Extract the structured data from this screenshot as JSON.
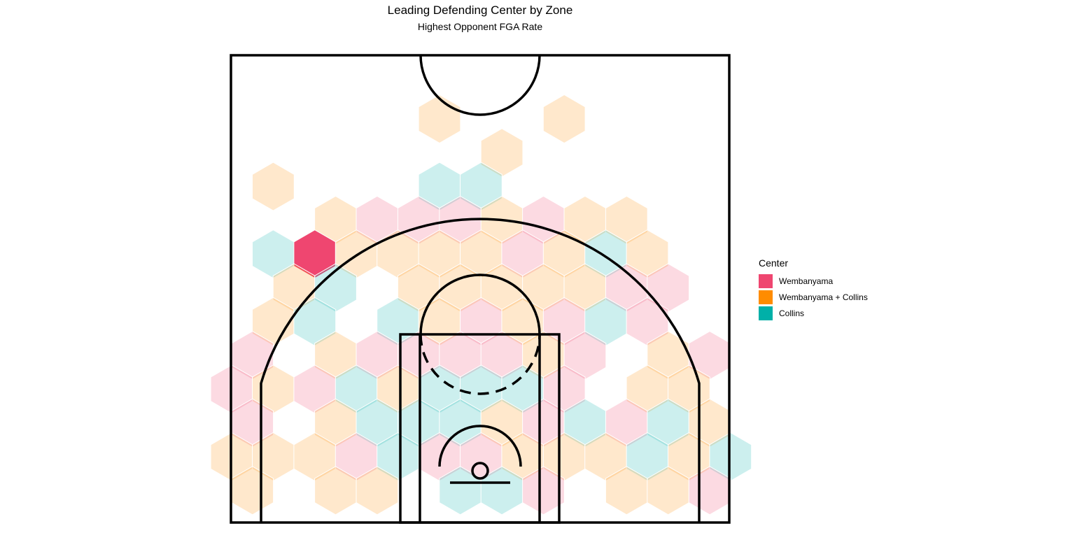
{
  "chart_data": {
    "type": "heatmap",
    "title": "Leading Defending Center by Zone",
    "subtitle": "Highest Opponent FGA Rate",
    "legend": {
      "title": "Center",
      "placement": "right",
      "entries": [
        {
          "name": "Wembanyama",
          "color": "#ef4670"
        },
        {
          "name": "Wembanyama + Collins",
          "color": "#ff8c00"
        },
        {
          "name": "Collins",
          "color": "#00b0a8"
        }
      ]
    },
    "grid": false,
    "hexbins": [
      {
        "col": 5,
        "row": 0,
        "center": "Wembanyama + Collins",
        "alpha": 0.2
      },
      {
        "col": 8,
        "row": 0,
        "center": "Wembanyama + Collins",
        "alpha": 0.2
      },
      {
        "col": 6,
        "row": 1,
        "center": "Wembanyama + Collins",
        "alpha": 0.2
      },
      {
        "col": 1,
        "row": 2,
        "center": "Wembanyama + Collins",
        "alpha": 0.2
      },
      {
        "col": 5,
        "row": 2,
        "center": "Collins",
        "alpha": 0.2
      },
      {
        "col": 6,
        "row": 2,
        "center": "Collins",
        "alpha": 0.2
      },
      {
        "col": 2,
        "row": 3,
        "center": "Wembanyama + Collins",
        "alpha": 0.2
      },
      {
        "col": 3,
        "row": 3,
        "center": "Wembanyama",
        "alpha": 0.2
      },
      {
        "col": 4,
        "row": 3,
        "center": "Wembanyama",
        "alpha": 0.2
      },
      {
        "col": 5,
        "row": 3,
        "center": "Wembanyama",
        "alpha": 0.2
      },
      {
        "col": 6,
        "row": 3,
        "center": "Wembanyama + Collins",
        "alpha": 0.2
      },
      {
        "col": 7,
        "row": 3,
        "center": "Wembanyama",
        "alpha": 0.2
      },
      {
        "col": 8,
        "row": 3,
        "center": "Wembanyama + Collins",
        "alpha": 0.2
      },
      {
        "col": 9,
        "row": 3,
        "center": "Wembanyama + Collins",
        "alpha": 0.2
      },
      {
        "col": 1,
        "row": 4,
        "center": "Collins",
        "alpha": 0.2
      },
      {
        "col": 2,
        "row": 4,
        "center": "Wembanyama",
        "alpha": 1.0
      },
      {
        "col": 3,
        "row": 4,
        "center": "Wembanyama + Collins",
        "alpha": 0.2
      },
      {
        "col": 4,
        "row": 4,
        "center": "Wembanyama + Collins",
        "alpha": 0.2
      },
      {
        "col": 5,
        "row": 4,
        "center": "Wembanyama + Collins",
        "alpha": 0.2
      },
      {
        "col": 6,
        "row": 4,
        "center": "Wembanyama + Collins",
        "alpha": 0.2
      },
      {
        "col": 7,
        "row": 4,
        "center": "Wembanyama",
        "alpha": 0.2
      },
      {
        "col": 8,
        "row": 4,
        "center": "Wembanyama + Collins",
        "alpha": 0.2
      },
      {
        "col": 9,
        "row": 4,
        "center": "Collins",
        "alpha": 0.2
      },
      {
        "col": 10,
        "row": 4,
        "center": "Wembanyama + Collins",
        "alpha": 0.2
      },
      {
        "col": 1,
        "row": 5,
        "center": "Wembanyama + Collins",
        "alpha": 0.2
      },
      {
        "col": 2,
        "row": 5,
        "center": "Collins",
        "alpha": 0.2
      },
      {
        "col": 4,
        "row": 5,
        "center": "Wembanyama + Collins",
        "alpha": 0.2
      },
      {
        "col": 5,
        "row": 5,
        "center": "Wembanyama + Collins",
        "alpha": 0.2
      },
      {
        "col": 6,
        "row": 5,
        "center": "Wembanyama + Collins",
        "alpha": 0.2
      },
      {
        "col": 7,
        "row": 5,
        "center": "Wembanyama + Collins",
        "alpha": 0.2
      },
      {
        "col": 8,
        "row": 5,
        "center": "Wembanyama + Collins",
        "alpha": 0.2
      },
      {
        "col": 9,
        "row": 5,
        "center": "Wembanyama",
        "alpha": 0.2
      },
      {
        "col": 10,
        "row": 5,
        "center": "Wembanyama",
        "alpha": 0.2
      },
      {
        "col": 1,
        "row": 6,
        "center": "Wembanyama + Collins",
        "alpha": 0.2
      },
      {
        "col": 2,
        "row": 6,
        "center": "Collins",
        "alpha": 0.2
      },
      {
        "col": 4,
        "row": 6,
        "center": "Collins",
        "alpha": 0.2
      },
      {
        "col": 5,
        "row": 6,
        "center": "Wembanyama + Collins",
        "alpha": 0.2
      },
      {
        "col": 6,
        "row": 6,
        "center": "Wembanyama",
        "alpha": 0.2
      },
      {
        "col": 7,
        "row": 6,
        "center": "Wembanyama + Collins",
        "alpha": 0.2
      },
      {
        "col": 8,
        "row": 6,
        "center": "Wembanyama",
        "alpha": 0.2
      },
      {
        "col": 9,
        "row": 6,
        "center": "Collins",
        "alpha": 0.2
      },
      {
        "col": 10,
        "row": 6,
        "center": "Wembanyama",
        "alpha": 0.2
      },
      {
        "col": 0,
        "row": 7,
        "center": "Wembanyama",
        "alpha": 0.2
      },
      {
        "col": 2,
        "row": 7,
        "center": "Wembanyama + Collins",
        "alpha": 0.2
      },
      {
        "col": 3,
        "row": 7,
        "center": "Wembanyama",
        "alpha": 0.2
      },
      {
        "col": 4,
        "row": 7,
        "center": "Wembanyama",
        "alpha": 0.2
      },
      {
        "col": 5,
        "row": 7,
        "center": "Wembanyama",
        "alpha": 0.2
      },
      {
        "col": 6,
        "row": 7,
        "center": "Wembanyama",
        "alpha": 0.2
      },
      {
        "col": 7,
        "row": 7,
        "center": "Wembanyama + Collins",
        "alpha": 0.2
      },
      {
        "col": 8,
        "row": 7,
        "center": "Wembanyama",
        "alpha": 0.2
      },
      {
        "col": 10,
        "row": 7,
        "center": "Wembanyama + Collins",
        "alpha": 0.2
      },
      {
        "col": 11,
        "row": 7,
        "center": "Wembanyama",
        "alpha": 0.2
      },
      {
        "col": 0,
        "row": 8,
        "center": "Wembanyama",
        "alpha": 0.2
      },
      {
        "col": 1,
        "row": 8,
        "center": "Wembanyama + Collins",
        "alpha": 0.2
      },
      {
        "col": 2,
        "row": 8,
        "center": "Wembanyama",
        "alpha": 0.2
      },
      {
        "col": 3,
        "row": 8,
        "center": "Collins",
        "alpha": 0.2
      },
      {
        "col": 4,
        "row": 8,
        "center": "Wembanyama + Collins",
        "alpha": 0.2
      },
      {
        "col": 5,
        "row": 8,
        "center": "Collins",
        "alpha": 0.2
      },
      {
        "col": 6,
        "row": 8,
        "center": "Collins",
        "alpha": 0.2
      },
      {
        "col": 7,
        "row": 8,
        "center": "Collins",
        "alpha": 0.2
      },
      {
        "col": 8,
        "row": 8,
        "center": "Wembanyama",
        "alpha": 0.2
      },
      {
        "col": 10,
        "row": 8,
        "center": "Wembanyama + Collins",
        "alpha": 0.2
      },
      {
        "col": 11,
        "row": 8,
        "center": "Wembanyama + Collins",
        "alpha": 0.2
      },
      {
        "col": 0,
        "row": 9,
        "center": "Wembanyama",
        "alpha": 0.2
      },
      {
        "col": 2,
        "row": 9,
        "center": "Wembanyama + Collins",
        "alpha": 0.2
      },
      {
        "col": 3,
        "row": 9,
        "center": "Collins",
        "alpha": 0.2
      },
      {
        "col": 4,
        "row": 9,
        "center": "Collins",
        "alpha": 0.2
      },
      {
        "col": 5,
        "row": 9,
        "center": "Collins",
        "alpha": 0.2
      },
      {
        "col": 6,
        "row": 9,
        "center": "Wembanyama + Collins",
        "alpha": 0.2
      },
      {
        "col": 7,
        "row": 9,
        "center": "Wembanyama",
        "alpha": 0.2
      },
      {
        "col": 8,
        "row": 9,
        "center": "Collins",
        "alpha": 0.2
      },
      {
        "col": 9,
        "row": 9,
        "center": "Wembanyama",
        "alpha": 0.2
      },
      {
        "col": 10,
        "row": 9,
        "center": "Collins",
        "alpha": 0.2
      },
      {
        "col": 11,
        "row": 9,
        "center": "Wembanyama + Collins",
        "alpha": 0.2
      },
      {
        "col": 0,
        "row": 10,
        "center": "Wembanyama + Collins",
        "alpha": 0.2
      },
      {
        "col": 1,
        "row": 10,
        "center": "Wembanyama + Collins",
        "alpha": 0.2
      },
      {
        "col": 2,
        "row": 10,
        "center": "Wembanyama + Collins",
        "alpha": 0.2
      },
      {
        "col": 3,
        "row": 10,
        "center": "Wembanyama",
        "alpha": 0.2
      },
      {
        "col": 4,
        "row": 10,
        "center": "Collins",
        "alpha": 0.2
      },
      {
        "col": 5,
        "row": 10,
        "center": "Wembanyama",
        "alpha": 0.2
      },
      {
        "col": 6,
        "row": 10,
        "center": "Wembanyama",
        "alpha": 0.2
      },
      {
        "col": 7,
        "row": 10,
        "center": "Wembanyama + Collins",
        "alpha": 0.2
      },
      {
        "col": 8,
        "row": 10,
        "center": "Wembanyama + Collins",
        "alpha": 0.2
      },
      {
        "col": 9,
        "row": 10,
        "center": "Wembanyama + Collins",
        "alpha": 0.2
      },
      {
        "col": 10,
        "row": 10,
        "center": "Collins",
        "alpha": 0.2
      },
      {
        "col": 11,
        "row": 10,
        "center": "Wembanyama + Collins",
        "alpha": 0.2
      },
      {
        "col": 12,
        "row": 10,
        "center": "Collins",
        "alpha": 0.2
      },
      {
        "col": 0,
        "row": 11,
        "center": "Wembanyama + Collins",
        "alpha": 0.2
      },
      {
        "col": 2,
        "row": 11,
        "center": "Wembanyama + Collins",
        "alpha": 0.2
      },
      {
        "col": 3,
        "row": 11,
        "center": "Wembanyama + Collins",
        "alpha": 0.2
      },
      {
        "col": 5,
        "row": 11,
        "center": "Collins",
        "alpha": 0.2
      },
      {
        "col": 6,
        "row": 11,
        "center": "Collins",
        "alpha": 0.2
      },
      {
        "col": 7,
        "row": 11,
        "center": "Wembanyama",
        "alpha": 0.2
      },
      {
        "col": 9,
        "row": 11,
        "center": "Wembanyama + Collins",
        "alpha": 0.2
      },
      {
        "col": 10,
        "row": 11,
        "center": "Wembanyama + Collins",
        "alpha": 0.2
      },
      {
        "col": 11,
        "row": 11,
        "center": "Wembanyama",
        "alpha": 0.2
      }
    ]
  }
}
